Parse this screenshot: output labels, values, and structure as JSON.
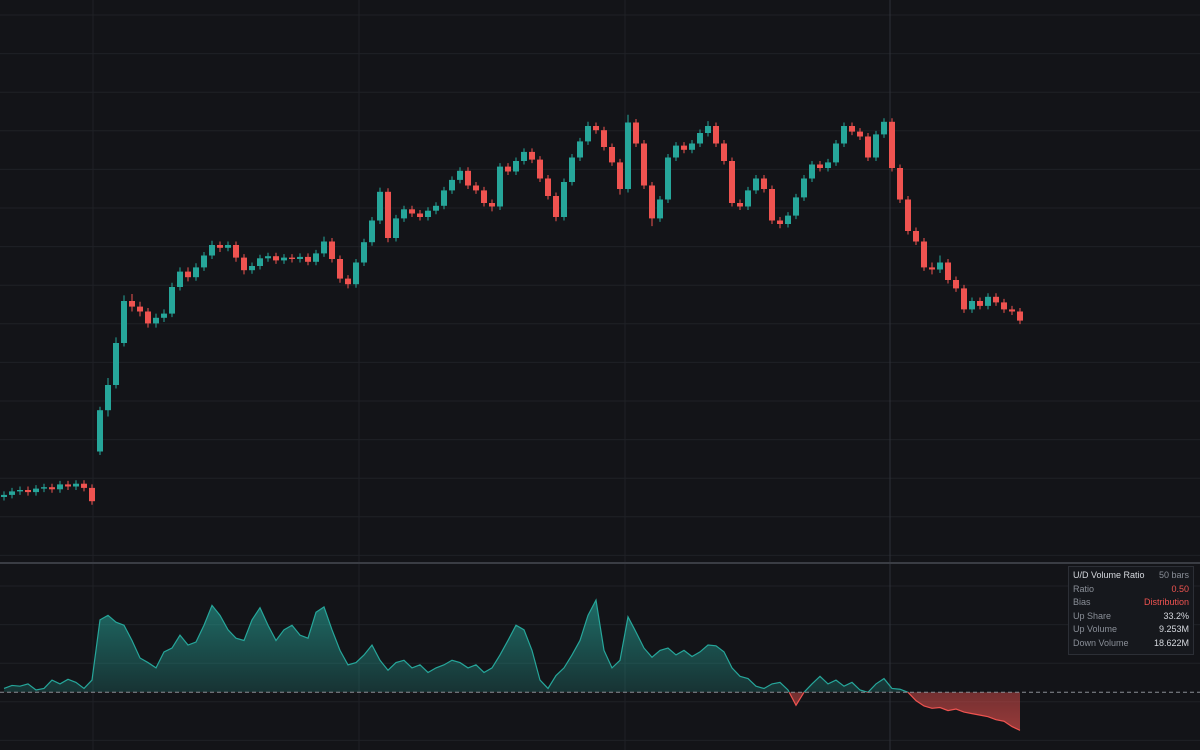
{
  "chart_data": [
    {
      "type": "candlestick",
      "up_color": "#26a69a",
      "down_color": "#ef5350",
      "ylim": [
        40,
        120
      ],
      "open": [
        49.0,
        49.3,
        49.8,
        50.0,
        49.7,
        50.2,
        50.4,
        50.1,
        50.8,
        50.5,
        50.9,
        50.3,
        55.5,
        61.4,
        65.0,
        71.0,
        77.0,
        76.2,
        75.5,
        73.8,
        74.6,
        75.2,
        79.0,
        81.2,
        80.4,
        81.8,
        83.5,
        85.0,
        84.6,
        85.0,
        83.2,
        81.4,
        82.0,
        83.1,
        83.4,
        82.8,
        83.2,
        83.0,
        83.3,
        82.6,
        83.8,
        85.5,
        83.0,
        80.2,
        79.4,
        82.5,
        85.4,
        88.5,
        92.6,
        86.0,
        88.8,
        90.1,
        89.5,
        89.0,
        89.9,
        90.6,
        92.8,
        94.3,
        95.6,
        93.5,
        92.8,
        91.0,
        90.5,
        96.2,
        95.5,
        97.0,
        98.3,
        97.2,
        94.5,
        92.0,
        89.0,
        94.0,
        97.5,
        99.8,
        102.0,
        101.4,
        99.0,
        96.8,
        93.0,
        102.5,
        99.5,
        93.5,
        88.8,
        91.5,
        97.5,
        99.2,
        98.6,
        99.5,
        101.0,
        102.0,
        99.5,
        97.0,
        91.0,
        90.5,
        92.8,
        94.5,
        93.0,
        88.5,
        88.0,
        89.2,
        91.8,
        94.5,
        96.5,
        96.0,
        96.8,
        99.5,
        102.0,
        101.2,
        100.5,
        97.5,
        100.8,
        102.6,
        96.0,
        91.5,
        87.0,
        85.5,
        81.8,
        81.5,
        82.5,
        80.0,
        78.8,
        75.8,
        77.0,
        76.3,
        77.6,
        76.8,
        75.8,
        75.5
      ],
      "high": [
        49.8,
        50.3,
        50.5,
        50.5,
        50.7,
        50.9,
        50.9,
        51.3,
        51.3,
        51.4,
        51.4,
        50.8,
        61.9,
        66.0,
        71.8,
        77.8,
        78.0,
        76.9,
        76.0,
        75.2,
        75.8,
        79.6,
        81.8,
        81.8,
        82.4,
        84.0,
        85.6,
        85.5,
        85.5,
        85.5,
        83.7,
        82.5,
        83.6,
        83.9,
        83.9,
        83.7,
        83.7,
        83.8,
        83.8,
        84.3,
        86.2,
        86.0,
        83.5,
        80.7,
        83.0,
        85.9,
        89.0,
        93.2,
        93.1,
        89.3,
        90.6,
        90.6,
        90.0,
        90.4,
        91.1,
        93.3,
        94.8,
        96.1,
        96.1,
        94.0,
        93.3,
        91.5,
        96.7,
        96.7,
        97.5,
        98.8,
        98.8,
        97.7,
        95.0,
        92.5,
        94.5,
        98.0,
        100.3,
        102.6,
        102.5,
        101.9,
        99.5,
        97.3,
        103.6,
        103.0,
        100.0,
        94.0,
        92.0,
        98.0,
        99.7,
        99.7,
        100.0,
        101.5,
        102.7,
        102.5,
        100.0,
        97.5,
        91.5,
        93.3,
        95.0,
        95.0,
        93.5,
        89.0,
        89.7,
        92.3,
        95.0,
        97.0,
        97.0,
        97.3,
        100.0,
        102.5,
        102.5,
        101.7,
        101.0,
        101.3,
        103.1,
        103.1,
        96.5,
        92.0,
        87.5,
        86.0,
        82.5,
        83.5,
        83.0,
        80.5,
        79.3,
        77.5,
        77.5,
        78.1,
        78.1,
        77.3,
        76.3,
        76.0
      ],
      "low": [
        48.5,
        48.8,
        49.3,
        49.2,
        49.2,
        49.7,
        49.6,
        49.6,
        50.0,
        50.0,
        49.8,
        47.9,
        55.0,
        60.5,
        64.5,
        70.5,
        75.5,
        74.8,
        73.2,
        73.2,
        74.0,
        74.7,
        78.5,
        79.8,
        79.9,
        81.3,
        83.0,
        84.0,
        84.1,
        82.6,
        80.8,
        80.9,
        81.5,
        82.6,
        82.3,
        82.3,
        82.5,
        82.5,
        82.1,
        82.1,
        83.3,
        82.5,
        79.6,
        78.8,
        78.9,
        82.0,
        84.9,
        88.0,
        85.4,
        85.5,
        88.3,
        89.0,
        88.5,
        88.5,
        89.4,
        90.1,
        92.3,
        93.8,
        93.0,
        92.3,
        90.5,
        89.8,
        90.0,
        95.0,
        95.0,
        96.5,
        96.7,
        94.0,
        91.5,
        88.4,
        88.5,
        93.5,
        97.0,
        99.3,
        100.9,
        98.5,
        96.3,
        92.2,
        92.5,
        99.0,
        93.0,
        87.7,
        88.3,
        91.0,
        97.0,
        98.1,
        98.1,
        99.0,
        100.5,
        99.0,
        96.5,
        90.5,
        90.0,
        90.0,
        92.3,
        92.5,
        88.0,
        87.4,
        87.5,
        88.7,
        91.3,
        94.0,
        95.5,
        95.5,
        96.3,
        99.0,
        100.7,
        100.0,
        97.0,
        97.0,
        100.3,
        95.5,
        91.0,
        86.5,
        85.0,
        81.3,
        80.8,
        81.0,
        79.5,
        78.3,
        75.3,
        75.3,
        75.8,
        75.8,
        76.3,
        75.3,
        75.0,
        73.7
      ],
      "close": [
        49.3,
        49.8,
        50.0,
        49.7,
        50.2,
        50.4,
        50.1,
        50.8,
        50.5,
        50.9,
        50.3,
        48.4,
        61.4,
        65.0,
        71.0,
        77.0,
        76.2,
        75.5,
        73.8,
        74.6,
        75.2,
        79.0,
        81.2,
        80.4,
        81.8,
        83.5,
        85.0,
        84.6,
        85.0,
        83.2,
        81.4,
        82.0,
        83.1,
        83.4,
        82.8,
        83.2,
        83.0,
        83.3,
        82.6,
        83.8,
        85.5,
        83.0,
        80.2,
        79.4,
        82.5,
        85.4,
        88.5,
        92.6,
        86.0,
        88.8,
        90.1,
        89.5,
        89.0,
        89.9,
        90.6,
        92.8,
        94.3,
        95.6,
        93.5,
        92.8,
        91.0,
        90.5,
        96.2,
        95.5,
        97.0,
        98.3,
        97.2,
        94.5,
        92.0,
        89.0,
        94.0,
        97.5,
        99.8,
        102.0,
        101.4,
        99.0,
        96.8,
        93.0,
        102.5,
        99.5,
        93.5,
        88.8,
        91.5,
        97.5,
        99.2,
        98.6,
        99.5,
        101.0,
        102.0,
        99.5,
        97.0,
        91.0,
        90.5,
        92.8,
        94.5,
        93.0,
        88.5,
        88.0,
        89.2,
        91.8,
        94.5,
        96.5,
        96.0,
        96.8,
        99.5,
        102.0,
        101.2,
        100.5,
        97.5,
        100.8,
        102.6,
        96.0,
        91.5,
        87.0,
        85.5,
        81.8,
        81.5,
        82.5,
        80.0,
        78.8,
        75.8,
        77.0,
        76.3,
        77.6,
        76.8,
        75.8,
        75.5,
        74.2
      ]
    },
    {
      "type": "oscillator",
      "up_color": "#26a69a",
      "down_color": "#ef5350",
      "ylim": [
        0.4,
        2.5
      ],
      "baseline": 1,
      "values": [
        1.05,
        1.09,
        1.08,
        1.11,
        1.03,
        1.05,
        1.16,
        1.11,
        1.17,
        1.13,
        1.05,
        1.16,
        1.95,
        2.01,
        1.92,
        1.88,
        1.68,
        1.45,
        1.39,
        1.32,
        1.53,
        1.58,
        1.75,
        1.62,
        1.66,
        1.88,
        2.14,
        2.01,
        1.82,
        1.71,
        1.68,
        1.95,
        2.11,
        1.88,
        1.68,
        1.82,
        1.88,
        1.75,
        1.71,
        2.05,
        2.12,
        1.82,
        1.55,
        1.36,
        1.39,
        1.49,
        1.62,
        1.42,
        1.29,
        1.39,
        1.42,
        1.32,
        1.36,
        1.26,
        1.32,
        1.36,
        1.42,
        1.39,
        1.32,
        1.36,
        1.26,
        1.32,
        1.49,
        1.68,
        1.88,
        1.82,
        1.55,
        1.16,
        1.05,
        1.22,
        1.32,
        1.49,
        1.68,
        2.01,
        2.21,
        1.55,
        1.32,
        1.42,
        1.99,
        1.79,
        1.58,
        1.46,
        1.55,
        1.58,
        1.49,
        1.55,
        1.47,
        1.53,
        1.62,
        1.61,
        1.53,
        1.32,
        1.21,
        1.18,
        1.08,
        1.05,
        1.11,
        1.13,
        1.03,
        0.83,
        1.0,
        1.11,
        1.21,
        1.11,
        1.16,
        1.08,
        1.13,
        1.03,
        1.0,
        1.11,
        1.18,
        1.05,
        1.04,
        1.0,
        0.89,
        0.82,
        0.79,
        0.8,
        0.76,
        0.78,
        0.74,
        0.72,
        0.7,
        0.68,
        0.64,
        0.62,
        0.55,
        0.5
      ]
    }
  ],
  "info_panel": {
    "title": "U/D Volume Ratio",
    "subtitle": "50 bars",
    "rows": [
      [
        "Ratio",
        "0.50"
      ],
      [
        "Bias",
        "Distribution"
      ],
      [
        "Up Share",
        "33.2%"
      ],
      [
        "Up Volume",
        "9.253M"
      ],
      [
        "Down Volume",
        "18.622M"
      ]
    ]
  }
}
